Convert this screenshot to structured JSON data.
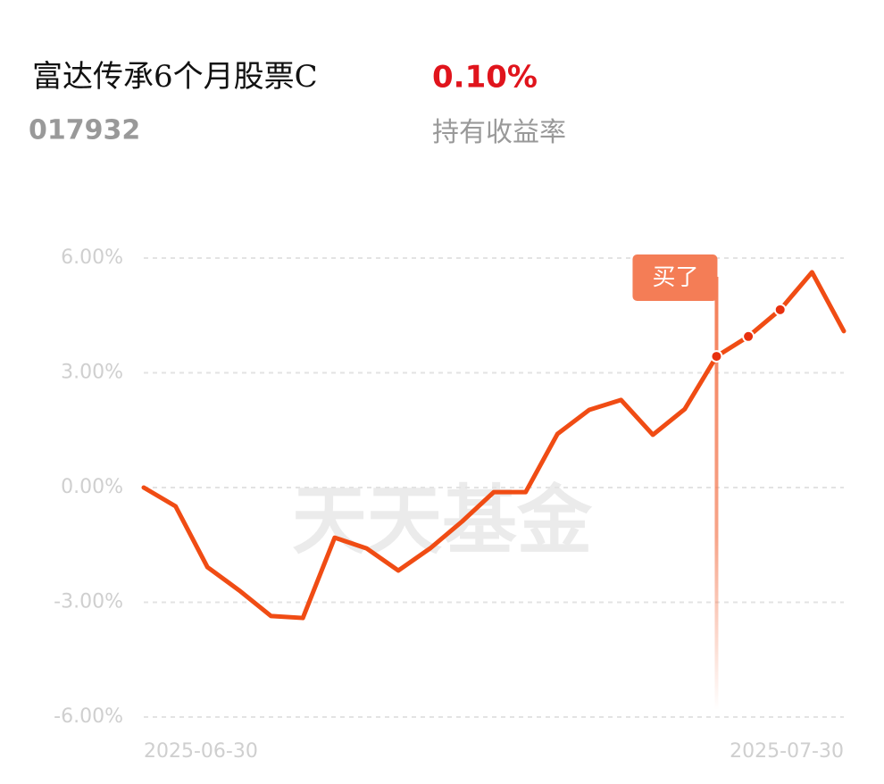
{
  "header": {
    "fund_name": "富达传承6个月股票C",
    "fund_code": "017932",
    "return_value": "0.10%",
    "return_label": "持有收益率"
  },
  "watermark": "天天基金",
  "chart_data": {
    "type": "line",
    "categories": [
      "2025-06-30",
      null,
      null,
      null,
      null,
      null,
      null,
      null,
      null,
      null,
      null,
      null,
      null,
      null,
      null,
      null,
      null,
      null,
      null,
      null,
      null,
      null,
      "2025-07-30"
    ],
    "series": [
      {
        "color": "#f04c14",
        "values": [
          0,
          -0.49,
          -2.08,
          -2.69,
          -3.36,
          -3.41,
          -1.31,
          -1.59,
          -2.17,
          -1.59,
          -0.89,
          -0.12,
          -0.12,
          1.4,
          2.03,
          2.29,
          1.38,
          2.05,
          3.43,
          3.95,
          4.65,
          5.63,
          4.09
        ]
      }
    ],
    "ylim": [
      -6,
      6
    ],
    "yticks": [
      {
        "value": 6,
        "label": "6.00%"
      },
      {
        "value": 3,
        "label": "3.00%"
      },
      {
        "value": 0,
        "label": "0.00%"
      },
      {
        "value": -3,
        "label": "-3.00%"
      },
      {
        "value": -6,
        "label": "-6.00%"
      }
    ],
    "grid": true,
    "marker_label": "买了",
    "marker_index": 18
  }
}
